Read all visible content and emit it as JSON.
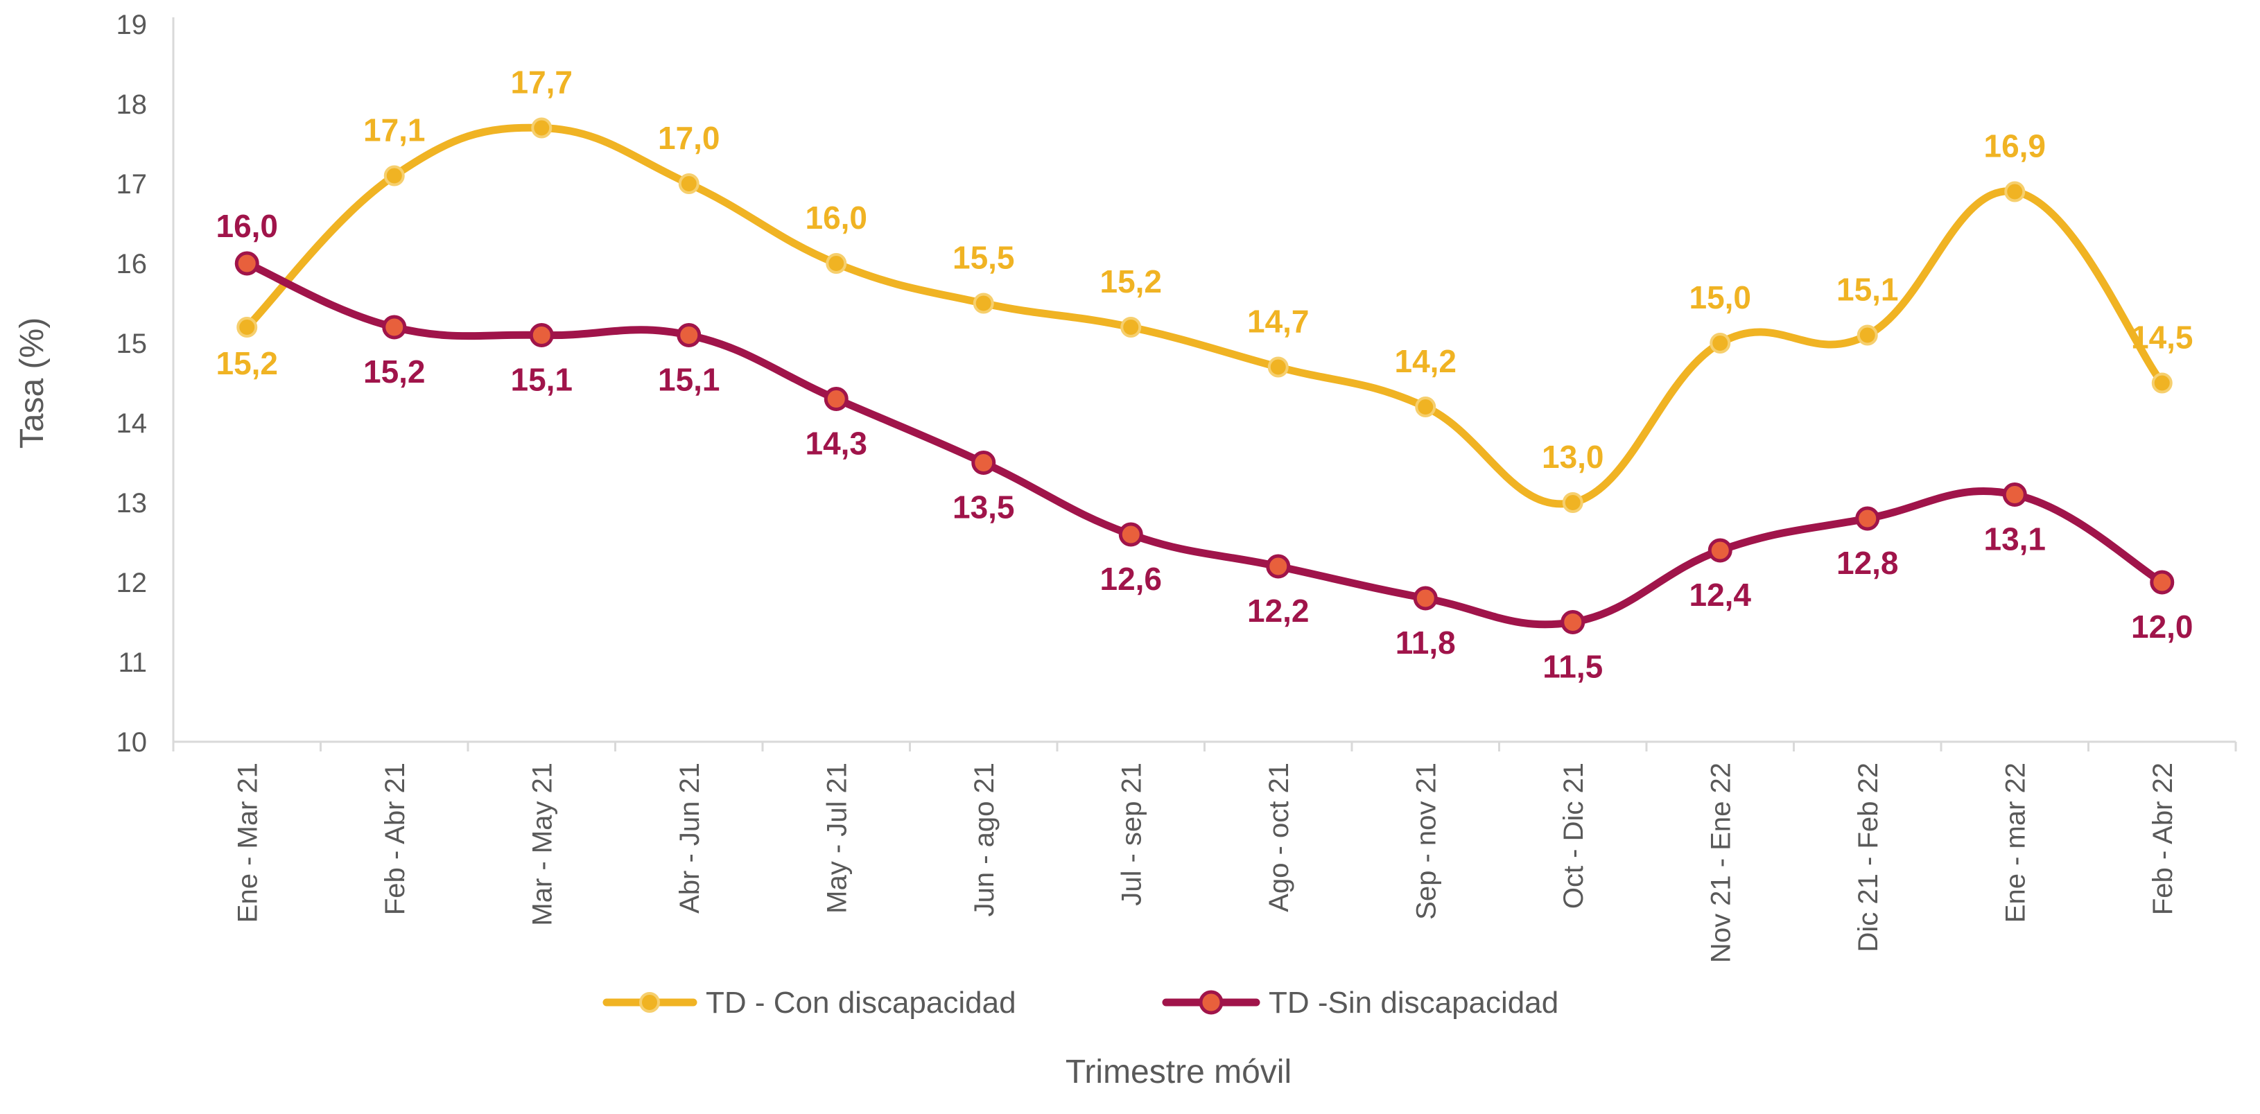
{
  "chart_data": {
    "type": "line",
    "title": "",
    "xlabel": "Trimestre móvil",
    "ylabel": "Tasa (%)",
    "ylim": [
      10,
      19
    ],
    "yticks": [
      "10",
      "11",
      "12",
      "13",
      "14",
      "15",
      "16",
      "17",
      "18",
      "19"
    ],
    "grid": false,
    "legend_position": "bottom",
    "categories": [
      "Ene - Mar 21",
      "Feb - Abr 21",
      "Mar - May 21",
      "Abr - Jun 21",
      "May - Jul 21",
      "Jun - ago 21",
      "Jul - sep 21",
      "Ago - oct 21",
      "Sep - nov 21",
      "Oct -  Dic 21",
      "Nov 21 - Ene 22",
      "Dic 21 - Feb 22",
      "Ene - mar 22",
      "Feb  - Abr 22"
    ],
    "series": [
      {
        "name": "TD - Con discapacidad",
        "color": "#F0B323",
        "values": [
          15.2,
          17.1,
          17.7,
          17.0,
          16.0,
          15.5,
          15.2,
          14.7,
          14.2,
          13.0,
          15.0,
          15.1,
          16.9,
          14.5
        ],
        "labels": [
          "15,2",
          "17,1",
          "17,7",
          "17,0",
          "16,0",
          "15,5",
          "15,2",
          "14,7",
          "14,2",
          "13,0",
          "15,0",
          "15,1",
          "16,9",
          "14,5"
        ]
      },
      {
        "name": "TD -Sin discapacidad",
        "color": "#A0144A",
        "marker_fill": "#E8603C",
        "values": [
          16.0,
          15.2,
          15.1,
          15.1,
          14.3,
          13.5,
          12.6,
          12.2,
          11.8,
          11.5,
          12.4,
          12.8,
          13.1,
          12.0
        ],
        "labels": [
          "16,0",
          "15,2",
          "15,1",
          "15,1",
          "14,3",
          "13,5",
          "12,6",
          "12,2",
          "11,8",
          "11,5",
          "12,4",
          "12,8",
          "13,1",
          "12,0"
        ]
      }
    ]
  }
}
